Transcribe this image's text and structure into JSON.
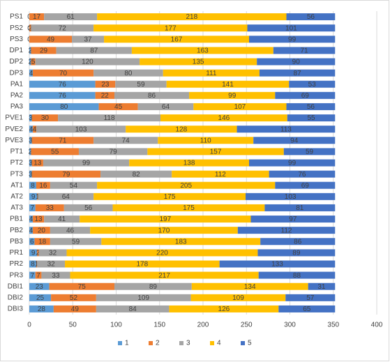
{
  "chart_data": {
    "type": "stacked-bar-horizontal",
    "categories": [
      "PS1",
      "PS2",
      "PS3",
      "DP1",
      "DP2",
      "DP3",
      "PA1",
      "PA2",
      "PA3",
      "PVE1",
      "PVE2",
      "PVE3",
      "PT1",
      "PT2",
      "PT3",
      "AT1",
      "AT2",
      "AT3",
      "PB1",
      "PB2",
      "PB3",
      "PR1",
      "PR2",
      "PR3",
      "DBI1",
      "DBI2",
      "DBI3"
    ],
    "series": [
      {
        "name": "1",
        "color": "#5b9bd5",
        "values": [
          0,
          0,
          0,
          2,
          2,
          4,
          76,
          76,
          80,
          3,
          4,
          3,
          2,
          3,
          3,
          8,
          9,
          7,
          4,
          4,
          6,
          9,
          8,
          7,
          23,
          25,
          28
        ]
      },
      {
        "name": "2",
        "color": "#ed7d31",
        "values": [
          17,
          2,
          49,
          29,
          5,
          70,
          23,
          22,
          45,
          30,
          4,
          71,
          55,
          13,
          79,
          16,
          1,
          33,
          13,
          20,
          18,
          2,
          1,
          7,
          75,
          52,
          49
        ]
      },
      {
        "name": "3",
        "color": "#a5a5a5",
        "values": [
          61,
          72,
          37,
          87,
          120,
          80,
          59,
          86,
          64,
          118,
          103,
          74,
          79,
          99,
          82,
          54,
          64,
          56,
          41,
          46,
          59,
          32,
          32,
          33,
          89,
          109,
          84
        ]
      },
      {
        "name": "4",
        "color": "#ffc000",
        "values": [
          218,
          177,
          167,
          163,
          135,
          111,
          141,
          99,
          107,
          146,
          128,
          110,
          157,
          138,
          112,
          205,
          175,
          175,
          197,
          170,
          183,
          220,
          178,
          217,
          134,
          109,
          126
        ]
      },
      {
        "name": "5",
        "color": "#4472c4",
        "values": [
          56,
          101,
          99,
          71,
          90,
          87,
          53,
          69,
          56,
          55,
          113,
          94,
          59,
          99,
          76,
          69,
          103,
          81,
          97,
          112,
          86,
          89,
          133,
          88,
          31,
          57,
          65
        ]
      }
    ],
    "xlim": [
      0,
      400
    ],
    "xticks": [
      0,
      50,
      100,
      150,
      200,
      250,
      300,
      350,
      400
    ],
    "grid": true,
    "legend": "bottom"
  }
}
